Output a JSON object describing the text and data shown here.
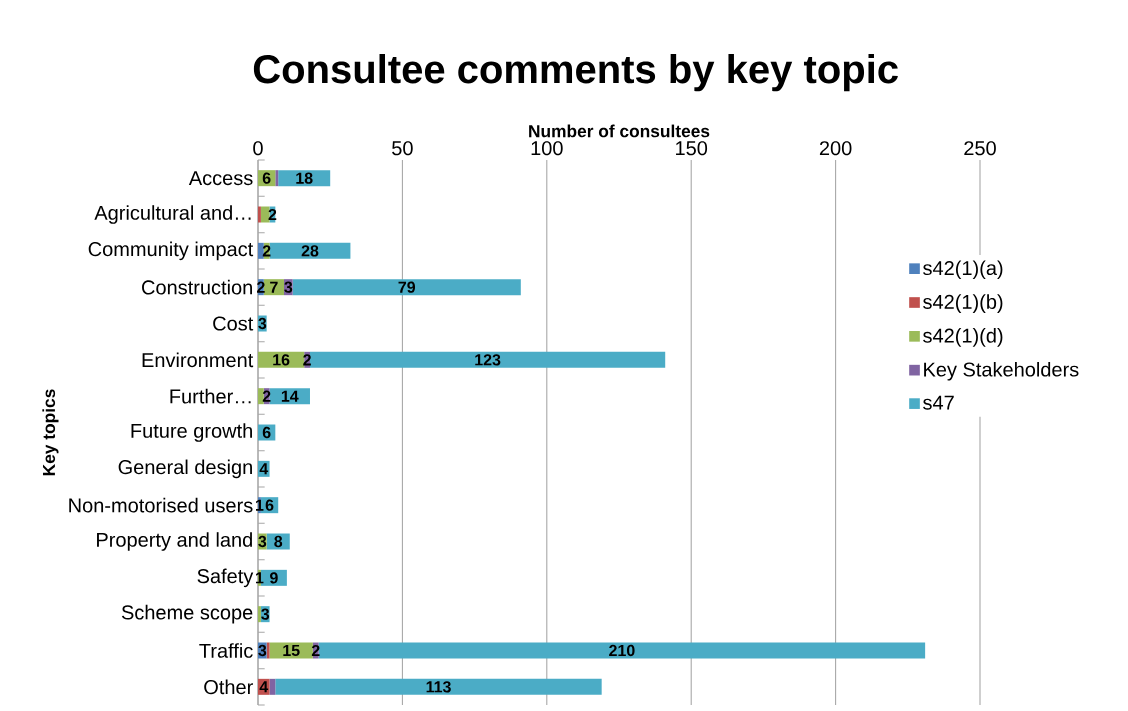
{
  "chart_data": {
    "type": "bar",
    "orientation": "horizontal",
    "stacked": true,
    "title": "Consultee comments by key topic",
    "xlabel": "Number of consultees",
    "ylabel": "Key topics",
    "categories": [
      "Access",
      "Agricultural and…",
      "Community impact",
      "Construction",
      "Cost",
      "Environment",
      "Further…",
      "Future growth",
      "General design",
      "Non-motorised users",
      "Property and land",
      "Safety",
      "Scheme scope",
      "Traffic",
      "Other"
    ],
    "series": [
      {
        "name": "s42(1)(a)",
        "color": "#4f81bd",
        "values": [
          null,
          null,
          2,
          2,
          null,
          null,
          null,
          null,
          null,
          1,
          null,
          null,
          null,
          3,
          null
        ],
        "value_labels": [
          null,
          null,
          null,
          "2",
          null,
          null,
          null,
          null,
          null,
          "1",
          null,
          null,
          null,
          "3",
          null
        ]
      },
      {
        "name": "s42(1)(b)",
        "color": "#c0504d",
        "values": [
          null,
          1,
          null,
          null,
          null,
          null,
          null,
          null,
          null,
          null,
          null,
          null,
          null,
          1,
          4
        ],
        "value_labels": [
          null,
          null,
          null,
          null,
          null,
          null,
          null,
          null,
          null,
          null,
          null,
          null,
          null,
          null,
          "4"
        ]
      },
      {
        "name": "s42(1)(d)",
        "color": "#9bbb59",
        "values": [
          6,
          3,
          2,
          7,
          null,
          16,
          2,
          null,
          null,
          null,
          3,
          1,
          1,
          15,
          null
        ],
        "value_labels": [
          "6",
          null,
          "2",
          "7",
          null,
          "16",
          null,
          null,
          null,
          null,
          "3",
          "1",
          null,
          "15",
          null
        ]
      },
      {
        "name": "Key Stakeholders",
        "color": "#8064a2",
        "values": [
          1,
          null,
          null,
          3,
          null,
          2,
          2,
          null,
          null,
          null,
          null,
          null,
          null,
          2,
          2
        ],
        "value_labels": [
          null,
          null,
          null,
          "3",
          null,
          "2",
          "2",
          null,
          null,
          null,
          null,
          null,
          null,
          "2",
          null
        ]
      },
      {
        "name": "s47",
        "color": "#4bacc6",
        "values": [
          18,
          2,
          28,
          79,
          3,
          123,
          14,
          6,
          4,
          6,
          8,
          9,
          3,
          210,
          113
        ],
        "value_labels": [
          "18",
          "2",
          "28",
          "79",
          "3",
          "123",
          "14",
          "6",
          "4",
          "6",
          "8",
          "9",
          "3",
          "210",
          "113"
        ]
      }
    ],
    "xlim": [
      0,
      250
    ],
    "xticks": [
      0,
      50,
      100,
      150,
      200,
      250
    ],
    "grid": "x",
    "legend": "right"
  }
}
